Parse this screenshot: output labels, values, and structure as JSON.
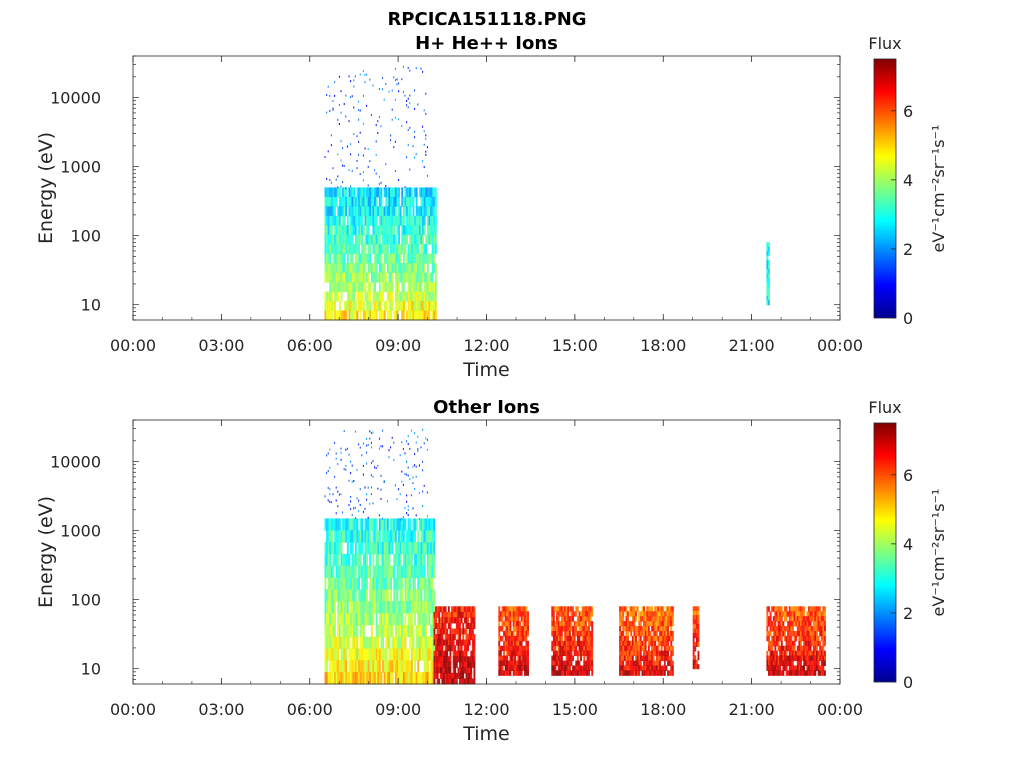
{
  "figure_title": "RPCICA151118.PNG",
  "chart_data": [
    {
      "type": "heatmap",
      "title": "H+ He++ Ions",
      "xlabel": "Time",
      "ylabel": "Energy (eV)",
      "x_ticks": [
        "00:00",
        "03:00",
        "06:00",
        "09:00",
        "12:00",
        "15:00",
        "18:00",
        "21:00",
        "00:00"
      ],
      "x_tick_hours": [
        0,
        3,
        6,
        9,
        12,
        15,
        18,
        21,
        24
      ],
      "xlim_hours": [
        0,
        24
      ],
      "y_scale": "log",
      "y_ticks": [
        "10",
        "100",
        "1000",
        "10000"
      ],
      "y_tick_values": [
        10,
        100,
        1000,
        10000
      ],
      "ylim": [
        6,
        40000
      ],
      "colorbar": {
        "label": "Flux",
        "unit_text": "eV⁻¹cm⁻²sr⁻¹s⁻¹",
        "ticks": [
          "0",
          "2",
          "4",
          "6"
        ],
        "tick_values": [
          0,
          2,
          4,
          6
        ],
        "range": [
          0,
          7.5
        ],
        "colormap": "jet"
      },
      "flux_blocks": [
        {
          "start_hour": 6.5,
          "end_hour": 10.3,
          "emin": 6,
          "emax": 500,
          "flux": 2.6,
          "peak_flux": 4.8
        },
        {
          "start_hour": 6.5,
          "end_hour": 10.0,
          "emin": 500,
          "emax": 30000,
          "flux": 1.5,
          "sparse": true
        },
        {
          "start_hour": 21.5,
          "end_hour": 21.6,
          "emin": 10,
          "emax": 80,
          "flux": 2.8
        }
      ]
    },
    {
      "type": "heatmap",
      "title": "Other Ions",
      "xlabel": "Time",
      "ylabel": "Energy (eV)",
      "x_ticks": [
        "00:00",
        "03:00",
        "06:00",
        "09:00",
        "12:00",
        "15:00",
        "18:00",
        "21:00",
        "00:00"
      ],
      "x_tick_hours": [
        0,
        3,
        6,
        9,
        12,
        15,
        18,
        21,
        24
      ],
      "xlim_hours": [
        0,
        24
      ],
      "y_scale": "log",
      "y_ticks": [
        "10",
        "100",
        "1000",
        "10000"
      ],
      "y_tick_values": [
        10,
        100,
        1000,
        10000
      ],
      "ylim": [
        6,
        40000
      ],
      "colorbar": {
        "label": "Flux",
        "unit_text": "eV⁻¹cm⁻²sr⁻¹s⁻¹",
        "ticks": [
          "0",
          "2",
          "4",
          "6"
        ],
        "tick_values": [
          0,
          2,
          4,
          6
        ],
        "range": [
          0,
          7.5
        ],
        "colormap": "jet"
      },
      "flux_blocks": [
        {
          "start_hour": 6.5,
          "end_hour": 10.2,
          "emin": 6,
          "emax": 1500,
          "flux": 3.0,
          "peak_flux": 5.0
        },
        {
          "start_hour": 6.5,
          "end_hour": 10.0,
          "emin": 1500,
          "emax": 30000,
          "flux": 1.5,
          "sparse": true
        },
        {
          "start_hour": 10.2,
          "end_hour": 11.6,
          "emin": 6,
          "emax": 80,
          "flux": 6.5,
          "peak_flux": 7.2
        },
        {
          "start_hour": 12.4,
          "end_hour": 13.4,
          "emin": 8,
          "emax": 80,
          "flux": 6.0,
          "peak_flux": 7.0
        },
        {
          "start_hour": 14.2,
          "end_hour": 15.6,
          "emin": 8,
          "emax": 80,
          "flux": 6.0,
          "peak_flux": 7.0
        },
        {
          "start_hour": 16.5,
          "end_hour": 18.3,
          "emin": 8,
          "emax": 80,
          "flux": 5.8,
          "peak_flux": 6.8
        },
        {
          "start_hour": 19.0,
          "end_hour": 19.2,
          "emin": 10,
          "emax": 80,
          "flux": 6.0,
          "peak_flux": 6.8
        },
        {
          "start_hour": 21.5,
          "end_hour": 23.5,
          "emin": 8,
          "emax": 80,
          "flux": 6.0,
          "peak_flux": 7.0
        }
      ]
    }
  ]
}
